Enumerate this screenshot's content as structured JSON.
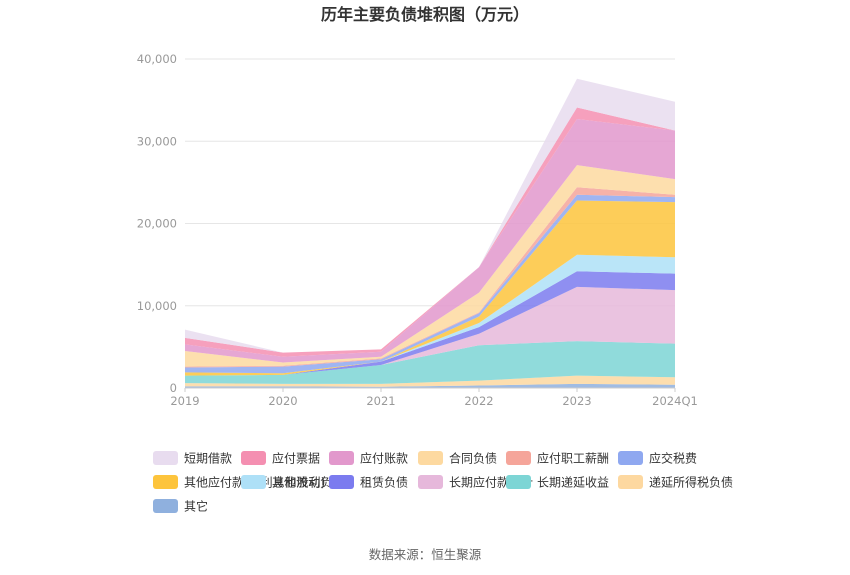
{
  "chart_data": {
    "type": "area",
    "stacked": true,
    "title": "历年主要负债堆积图（万元）",
    "source": "数据来源：恒生聚源",
    "x": [
      "2019",
      "2020",
      "2021",
      "2022",
      "2023",
      "2024Q1"
    ],
    "y_ticks": [
      "0",
      "10,000",
      "20,000",
      "30,000",
      "40,000"
    ],
    "ylim": [
      0,
      40000
    ],
    "grid": true,
    "legend_position": "bottom",
    "series": [
      {
        "name": "其它",
        "color": "#8fb0de",
        "values": [
          200,
          200,
          150,
          300,
          500,
          400
        ]
      },
      {
        "name": "递延所得税负债",
        "color": "#fdd8a0",
        "values": [
          400,
          300,
          350,
          600,
          1000,
          900
        ]
      },
      {
        "name": "长期递延收益",
        "color": "#7dd5d5",
        "values": [
          900,
          1100,
          2300,
          4300,
          4200,
          4100
        ]
      },
      {
        "name": "长期应付款合计",
        "color": "#e6b8db",
        "values": [
          0,
          0,
          0,
          1400,
          6600,
          6500
        ]
      },
      {
        "name": "租赁负债",
        "color": "#7b7bef",
        "values": [
          0,
          0,
          400,
          800,
          1900,
          2000
        ]
      },
      {
        "name": "其他流动负债",
        "color": "#aee0f7",
        "values": [
          0,
          0,
          0,
          500,
          2000,
          2000
        ]
      },
      {
        "name": "其他应付款(含利息和股利)",
        "color": "#fdc43c",
        "values": [
          400,
          200,
          0,
          800,
          6600,
          6700
        ]
      },
      {
        "name": "应交税费",
        "color": "#8fa8f0",
        "values": [
          600,
          800,
          300,
          400,
          700,
          600
        ]
      },
      {
        "name": "应付职工薪酬",
        "color": "#f5a59a",
        "values": [
          100,
          100,
          100,
          100,
          900,
          300
        ]
      },
      {
        "name": "合同负债",
        "color": "#fdd9a0",
        "values": [
          1900,
          400,
          200,
          2400,
          2700,
          1900
        ]
      },
      {
        "name": "应付账款",
        "color": "#e298cc",
        "values": [
          800,
          700,
          600,
          3100,
          5600,
          5900
        ]
      },
      {
        "name": "应付票据",
        "color": "#f48fb1",
        "values": [
          800,
          500,
          300,
          0,
          1400,
          0
        ]
      },
      {
        "name": "短期借款",
        "color": "#e8dcef",
        "values": [
          1000,
          0,
          0,
          0,
          3500,
          3500
        ]
      }
    ],
    "legend_order": [
      "短期借款",
      "应付票据",
      "应付账款",
      "合同负债",
      "应付职工薪酬",
      "应交税费",
      "其他应付款(含利息和股利)",
      "其他流动负债",
      "租赁负债",
      "长期应付款合计",
      "长期递延收益",
      "递延所得税负债",
      "其它"
    ]
  }
}
